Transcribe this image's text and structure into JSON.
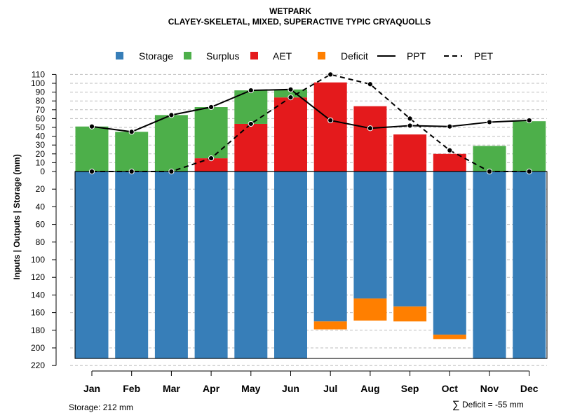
{
  "chart_data": {
    "type": "bar",
    "title": "WETPARK",
    "subtitle": "CLAYEY-SKELETAL, MIXED, SUPERACTIVE TYPIC CRYAQUOLLS",
    "ylabel": "Inputs | Outputs | Storage     (mm)",
    "categories": [
      "Jan",
      "Feb",
      "Mar",
      "Apr",
      "May",
      "Jun",
      "Jul",
      "Aug",
      "Sep",
      "Oct",
      "Nov",
      "Dec"
    ],
    "ylim": [
      -220,
      110
    ],
    "yticks": [
      {
        "value": 110,
        "label": "110"
      },
      {
        "value": 100,
        "label": "100"
      },
      {
        "value": 90,
        "label": "90"
      },
      {
        "value": 80,
        "label": "80"
      },
      {
        "value": 70,
        "label": "70"
      },
      {
        "value": 60,
        "label": "60"
      },
      {
        "value": 50,
        "label": "50"
      },
      {
        "value": 40,
        "label": "40"
      },
      {
        "value": 30,
        "label": "30"
      },
      {
        "value": 20,
        "label": "20"
      },
      {
        "value": 10,
        "label": "10"
      },
      {
        "value": 0,
        "label": "0"
      },
      {
        "value": -20,
        "label": "20"
      },
      {
        "value": -40,
        "label": "40"
      },
      {
        "value": -60,
        "label": "60"
      },
      {
        "value": -80,
        "label": "80"
      },
      {
        "value": -100,
        "label": "100"
      },
      {
        "value": -120,
        "label": "120"
      },
      {
        "value": -140,
        "label": "140"
      },
      {
        "value": -160,
        "label": "160"
      },
      {
        "value": -180,
        "label": "180"
      },
      {
        "value": -200,
        "label": "200"
      },
      {
        "value": -220,
        "label": "220"
      }
    ],
    "legend": [
      {
        "key": "storage",
        "label": "Storage",
        "kind": "square",
        "color": "#377EB8"
      },
      {
        "key": "surplus",
        "label": "Surplus",
        "kind": "square",
        "color": "#4DAF4A"
      },
      {
        "key": "aet",
        "label": "AET",
        "kind": "square",
        "color": "#E41A1C"
      },
      {
        "key": "deficit",
        "label": "Deficit",
        "kind": "square",
        "color": "#FF7F00"
      },
      {
        "key": "ppt",
        "label": "PPT",
        "kind": "solid-line",
        "color": "#000000"
      },
      {
        "key": "pet",
        "label": "PET",
        "kind": "dashed-line",
        "color": "#000000"
      }
    ],
    "colors": {
      "storage": "#377EB8",
      "surplus": "#4DAF4A",
      "aet": "#E41A1C",
      "deficit": "#FF7F00"
    },
    "series": [
      {
        "name": "AET",
        "values": [
          0,
          0,
          0,
          15,
          54,
          84,
          101,
          74,
          42,
          20,
          0,
          0
        ]
      },
      {
        "name": "Surplus",
        "values": [
          51,
          45,
          64,
          58,
          38,
          9,
          0,
          0,
          0,
          0,
          29,
          57
        ]
      },
      {
        "name": "Storage",
        "values": [
          212,
          212,
          212,
          212,
          212,
          212,
          170,
          144,
          153,
          185,
          212,
          212
        ]
      },
      {
        "name": "Deficit",
        "values": [
          0,
          0,
          0,
          0,
          0,
          0,
          9,
          25,
          17,
          5,
          0,
          0
        ]
      },
      {
        "name": "PPT",
        "values": [
          51,
          45,
          64,
          73,
          92,
          93,
          58,
          49,
          52,
          51,
          56,
          58
        ]
      },
      {
        "name": "PET",
        "values": [
          0,
          0,
          0,
          15,
          54,
          84,
          110,
          99,
          60,
          24,
          0,
          0
        ]
      }
    ],
    "storage_capacity": 212,
    "notes": {
      "storage": "Storage: 212 mm",
      "deficit_symbol": "∑",
      "deficit": "Deficit = -55 mm"
    }
  }
}
